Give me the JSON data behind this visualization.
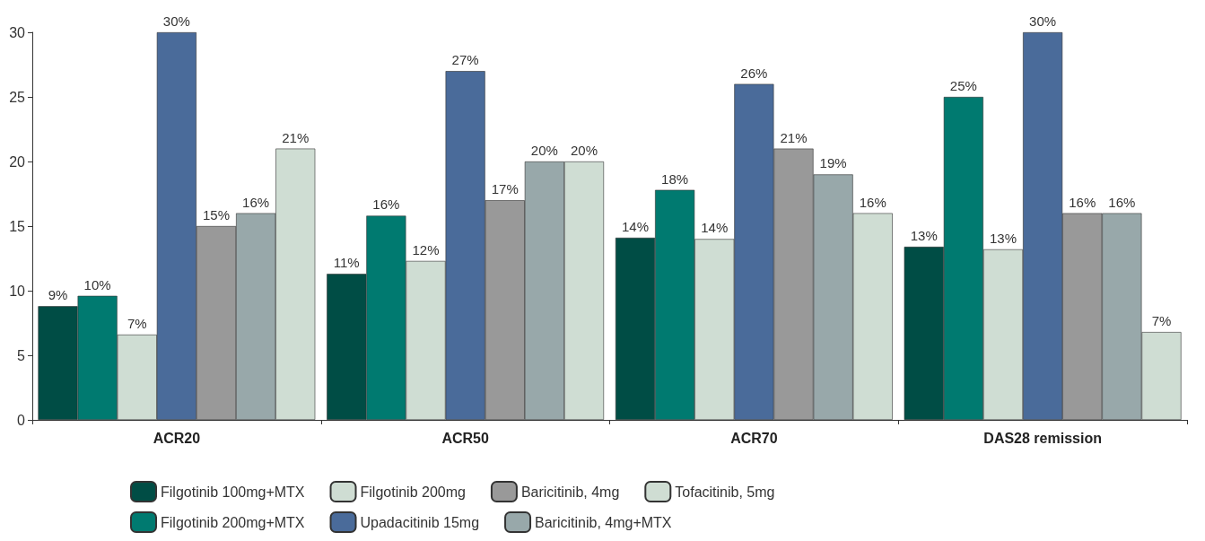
{
  "chart_data": {
    "type": "bar",
    "categories": [
      "ACR20",
      "ACR50",
      "ACR70",
      "DAS28 remission"
    ],
    "series": [
      {
        "name": "Filgotinib 100mg+MTX",
        "color": "#004d45",
        "values": [
          8.8,
          11.3,
          14.1,
          13.4
        ],
        "value_labels": [
          "9%",
          "11%",
          "14%",
          "13%"
        ]
      },
      {
        "name": "Filgotinib 200mg+MTX",
        "color": "#007a70",
        "values": [
          9.6,
          15.8,
          17.8,
          25
        ],
        "value_labels": [
          "10%",
          "16%",
          "18%",
          "25%"
        ]
      },
      {
        "name": "Filgotinib 200mg",
        "color": "#cfddd3",
        "values": [
          6.6,
          12.3,
          14,
          13.2
        ],
        "value_labels": [
          "7%",
          "12%",
          "14%",
          "13%"
        ]
      },
      {
        "name": "Upadacitinib 15mg",
        "color": "#4a6b9a",
        "values": [
          30,
          27,
          26,
          30
        ],
        "value_labels": [
          "30%",
          "27%",
          "26%",
          "30%"
        ]
      },
      {
        "name": "Baricitinib, 4mg",
        "color": "#999999",
        "values": [
          15,
          17,
          21,
          16
        ],
        "value_labels": [
          "15%",
          "17%",
          "21%",
          "16%"
        ]
      },
      {
        "name": "Baricitinib, 4mg+MTX",
        "color": "#98a8aa",
        "values": [
          16,
          20,
          19,
          16
        ],
        "value_labels": [
          "16%",
          "20%",
          "19%",
          "16%"
        ]
      },
      {
        "name": "Tofacitinib, 5mg",
        "color": "#cfddd3",
        "values": [
          21,
          20,
          16,
          6.8
        ],
        "value_labels": [
          "21%",
          "20%",
          "16%",
          "7%"
        ]
      }
    ],
    "ylim": [
      0,
      30
    ],
    "yticks": [
      0,
      5,
      10,
      15,
      20,
      25,
      30
    ],
    "grid": false,
    "legend": "bottom"
  }
}
